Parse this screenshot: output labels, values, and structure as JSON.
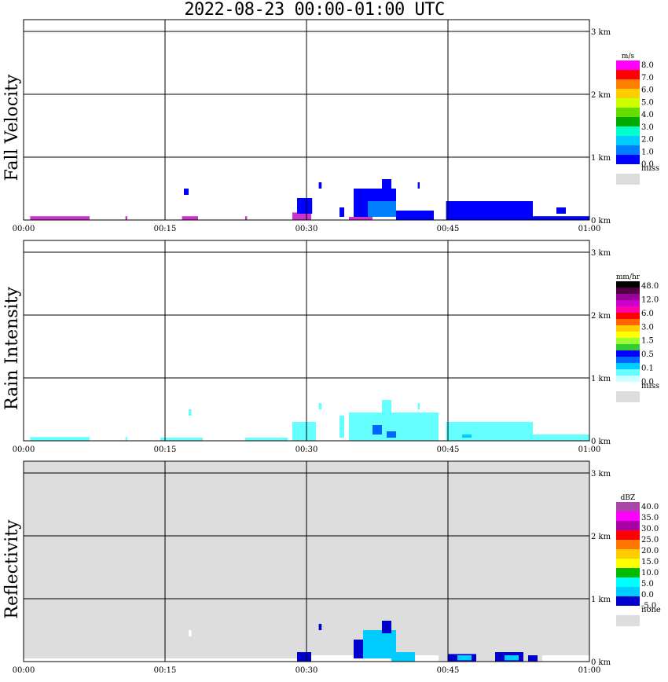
{
  "title": "2022-08-23   00:00-01:00 UTC",
  "x_ticks": [
    "00:00",
    "00:15",
    "00:30",
    "00:45",
    "01:00"
  ],
  "y_ticks": [
    "0 km",
    "1 km",
    "2 km",
    "3 km"
  ],
  "chart_data": [
    {
      "type": "heatmap",
      "ylabel": "Fall Velocity",
      "xlim": [
        "00:00",
        "01:00"
      ],
      "ylim_km": [
        0,
        3.2
      ],
      "grid": true,
      "background": "#ffffff",
      "colorbar": {
        "unit": "m/s",
        "labels": [
          "8.0",
          "7.0",
          "6.0",
          "5.0",
          "4.0",
          "3.0",
          "2.0",
          "1.0",
          "0.0"
        ],
        "colors": [
          "#ff00ff",
          "#ff0000",
          "#ff7f00",
          "#ffcc00",
          "#ccff00",
          "#66dd00",
          "#00aa00",
          "#00ffcc",
          "#00ccff",
          "#0080ff",
          "#0000ff"
        ],
        "miss_label": "miss",
        "miss_color": "#dddddd"
      },
      "echoes": [
        {
          "t0": 0.7,
          "t1": 7.0,
          "h0": 0.0,
          "h1": 0.06,
          "color": "#cc33cc"
        },
        {
          "t0": 10.8,
          "t1": 11.0,
          "h0": 0.0,
          "h1": 0.06,
          "color": "#cc33cc"
        },
        {
          "t0": 16.8,
          "t1": 18.5,
          "h0": 0.0,
          "h1": 0.06,
          "color": "#cc33cc"
        },
        {
          "t0": 23.5,
          "t1": 23.7,
          "h0": 0.0,
          "h1": 0.06,
          "color": "#cc33cc"
        },
        {
          "t0": 17.0,
          "t1": 17.5,
          "h0": 0.4,
          "h1": 0.5,
          "color": "#0000ff"
        },
        {
          "t0": 28.5,
          "t1": 30.5,
          "h0": 0.0,
          "h1": 0.12,
          "color": "#cc33cc"
        },
        {
          "t0": 29.0,
          "t1": 30.6,
          "h0": 0.1,
          "h1": 0.35,
          "color": "#0000ff"
        },
        {
          "t0": 31.3,
          "t1": 31.6,
          "h0": 0.5,
          "h1": 0.6,
          "color": "#0000ff"
        },
        {
          "t0": 33.5,
          "t1": 34.0,
          "h0": 0.05,
          "h1": 0.2,
          "color": "#0000ff"
        },
        {
          "t0": 34.5,
          "t1": 37.0,
          "h0": 0.0,
          "h1": 0.05,
          "color": "#cc33cc"
        },
        {
          "t0": 35.0,
          "t1": 39.5,
          "h0": 0.05,
          "h1": 0.5,
          "color": "#0000ff"
        },
        {
          "t0": 36.5,
          "t1": 39.5,
          "h0": 0.05,
          "h1": 0.3,
          "color": "#0080ff"
        },
        {
          "t0": 38.0,
          "t1": 39.0,
          "h0": 0.4,
          "h1": 0.65,
          "color": "#0000ff"
        },
        {
          "t0": 39.5,
          "t1": 43.5,
          "h0": 0.0,
          "h1": 0.15,
          "color": "#0000ff"
        },
        {
          "t0": 41.8,
          "t1": 42.0,
          "h0": 0.5,
          "h1": 0.6,
          "color": "#0000ff"
        },
        {
          "t0": 44.8,
          "t1": 54.0,
          "h0": 0.0,
          "h1": 0.3,
          "color": "#0000ff"
        },
        {
          "t0": 54.0,
          "t1": 60.0,
          "h0": 0.0,
          "h1": 0.06,
          "color": "#0000ff"
        },
        {
          "t0": 56.5,
          "t1": 57.5,
          "h0": 0.1,
          "h1": 0.2,
          "color": "#0000ff"
        }
      ]
    },
    {
      "type": "heatmap",
      "ylabel": "Rain Intensity",
      "xlim": [
        "00:00",
        "01:00"
      ],
      "ylim_km": [
        0,
        3.2
      ],
      "grid": true,
      "background": "#ffffff",
      "colorbar": {
        "unit": "mm/hr",
        "labels": [
          "48.0",
          "12.0",
          "6.0",
          "3.0",
          "1.5",
          "0.5",
          "0.1",
          "0.0"
        ],
        "colors": [
          "#000000",
          "#550044",
          "#990099",
          "#cc00cc",
          "#ff00aa",
          "#ff0000",
          "#ff6600",
          "#ffcc00",
          "#ffff00",
          "#99ff33",
          "#33cc33",
          "#0000ff",
          "#0066ff",
          "#00ccff",
          "#66ffff",
          "#ccffff"
        ],
        "miss_label": "miss",
        "miss_color": "#dddddd"
      },
      "echoes": [
        {
          "t0": 0.7,
          "t1": 7.0,
          "h0": 0.0,
          "h1": 0.06,
          "color": "#66ffff"
        },
        {
          "t0": 10.8,
          "t1": 11.0,
          "h0": 0.0,
          "h1": 0.06,
          "color": "#66ffff"
        },
        {
          "t0": 14.5,
          "t1": 19.0,
          "h0": 0.0,
          "h1": 0.05,
          "color": "#66ffff"
        },
        {
          "t0": 17.5,
          "t1": 17.8,
          "h0": 0.4,
          "h1": 0.5,
          "color": "#66ffff"
        },
        {
          "t0": 23.5,
          "t1": 28.0,
          "h0": 0.0,
          "h1": 0.05,
          "color": "#66ffff"
        },
        {
          "t0": 28.5,
          "t1": 31.0,
          "h0": 0.0,
          "h1": 0.3,
          "color": "#66ffff"
        },
        {
          "t0": 31.3,
          "t1": 31.6,
          "h0": 0.5,
          "h1": 0.6,
          "color": "#66ffff"
        },
        {
          "t0": 33.5,
          "t1": 34.0,
          "h0": 0.05,
          "h1": 0.4,
          "color": "#66ffff"
        },
        {
          "t0": 34.5,
          "t1": 44.0,
          "h0": 0.0,
          "h1": 0.45,
          "color": "#66ffff"
        },
        {
          "t0": 37.0,
          "t1": 38.0,
          "h0": 0.1,
          "h1": 0.25,
          "color": "#0066ff"
        },
        {
          "t0": 38.5,
          "t1": 39.5,
          "h0": 0.05,
          "h1": 0.15,
          "color": "#0066ff"
        },
        {
          "t0": 38.0,
          "t1": 39.0,
          "h0": 0.4,
          "h1": 0.65,
          "color": "#66ffff"
        },
        {
          "t0": 41.8,
          "t1": 42.0,
          "h0": 0.5,
          "h1": 0.6,
          "color": "#66ffff"
        },
        {
          "t0": 44.8,
          "t1": 54.0,
          "h0": 0.0,
          "h1": 0.3,
          "color": "#66ffff"
        },
        {
          "t0": 46.5,
          "t1": 47.5,
          "h0": 0.05,
          "h1": 0.1,
          "color": "#00ccff"
        },
        {
          "t0": 54.0,
          "t1": 60.0,
          "h0": 0.0,
          "h1": 0.1,
          "color": "#66ffff"
        }
      ]
    },
    {
      "type": "heatmap",
      "ylabel": "Reflectivity",
      "xlim": [
        "00:00",
        "01:00"
      ],
      "ylim_km": [
        0,
        3.2
      ],
      "grid": true,
      "background": "#dddddd",
      "colorbar": {
        "unit": "dBZ",
        "labels": [
          "40.0",
          "35.0",
          "30.0",
          "25.0",
          "20.0",
          "15.0",
          "10.0",
          "5.0",
          "0.0",
          "-5.0"
        ],
        "colors": [
          "#aa44aa",
          "#ff00ff",
          "#aa00aa",
          "#ff0000",
          "#ff7700",
          "#ffcc00",
          "#ffff00",
          "#00bb00",
          "#00ffff",
          "#00ccff",
          "#0000cc"
        ],
        "miss_label": "none",
        "miss_color": "#dddddd"
      },
      "echoes": [
        {
          "t0": 0.0,
          "t1": 29.0,
          "h0": 0.0,
          "h1": 0.05,
          "color": "#ffffff"
        },
        {
          "t0": 17.5,
          "t1": 17.8,
          "h0": 0.4,
          "h1": 0.5,
          "color": "#ffffff"
        },
        {
          "t0": 29.0,
          "t1": 30.5,
          "h0": 0.0,
          "h1": 0.15,
          "color": "#0000cc"
        },
        {
          "t0": 31.3,
          "t1": 31.6,
          "h0": 0.5,
          "h1": 0.6,
          "color": "#0000cc"
        },
        {
          "t0": 30.5,
          "t1": 44.0,
          "h0": 0.0,
          "h1": 0.1,
          "color": "#ffffff"
        },
        {
          "t0": 35.0,
          "t1": 37.5,
          "h0": 0.05,
          "h1": 0.35,
          "color": "#0000cc"
        },
        {
          "t0": 36.0,
          "t1": 39.5,
          "h0": 0.05,
          "h1": 0.5,
          "color": "#00ccff"
        },
        {
          "t0": 38.0,
          "t1": 39.0,
          "h0": 0.45,
          "h1": 0.65,
          "color": "#0000cc"
        },
        {
          "t0": 39.0,
          "t1": 41.5,
          "h0": 0.0,
          "h1": 0.15,
          "color": "#00ccff"
        },
        {
          "t0": 45.0,
          "t1": 48.0,
          "h0": 0.0,
          "h1": 0.12,
          "color": "#0000cc"
        },
        {
          "t0": 46.0,
          "t1": 47.5,
          "h0": 0.02,
          "h1": 0.1,
          "color": "#00ccff"
        },
        {
          "t0": 50.0,
          "t1": 53.0,
          "h0": 0.0,
          "h1": 0.15,
          "color": "#0000cc"
        },
        {
          "t0": 51.0,
          "t1": 52.5,
          "h0": 0.02,
          "h1": 0.1,
          "color": "#00ccff"
        },
        {
          "t0": 53.5,
          "t1": 54.5,
          "h0": 0.0,
          "h1": 0.1,
          "color": "#0000cc"
        },
        {
          "t0": 55.0,
          "t1": 60.0,
          "h0": 0.0,
          "h1": 0.1,
          "color": "#ffffff"
        }
      ]
    }
  ]
}
